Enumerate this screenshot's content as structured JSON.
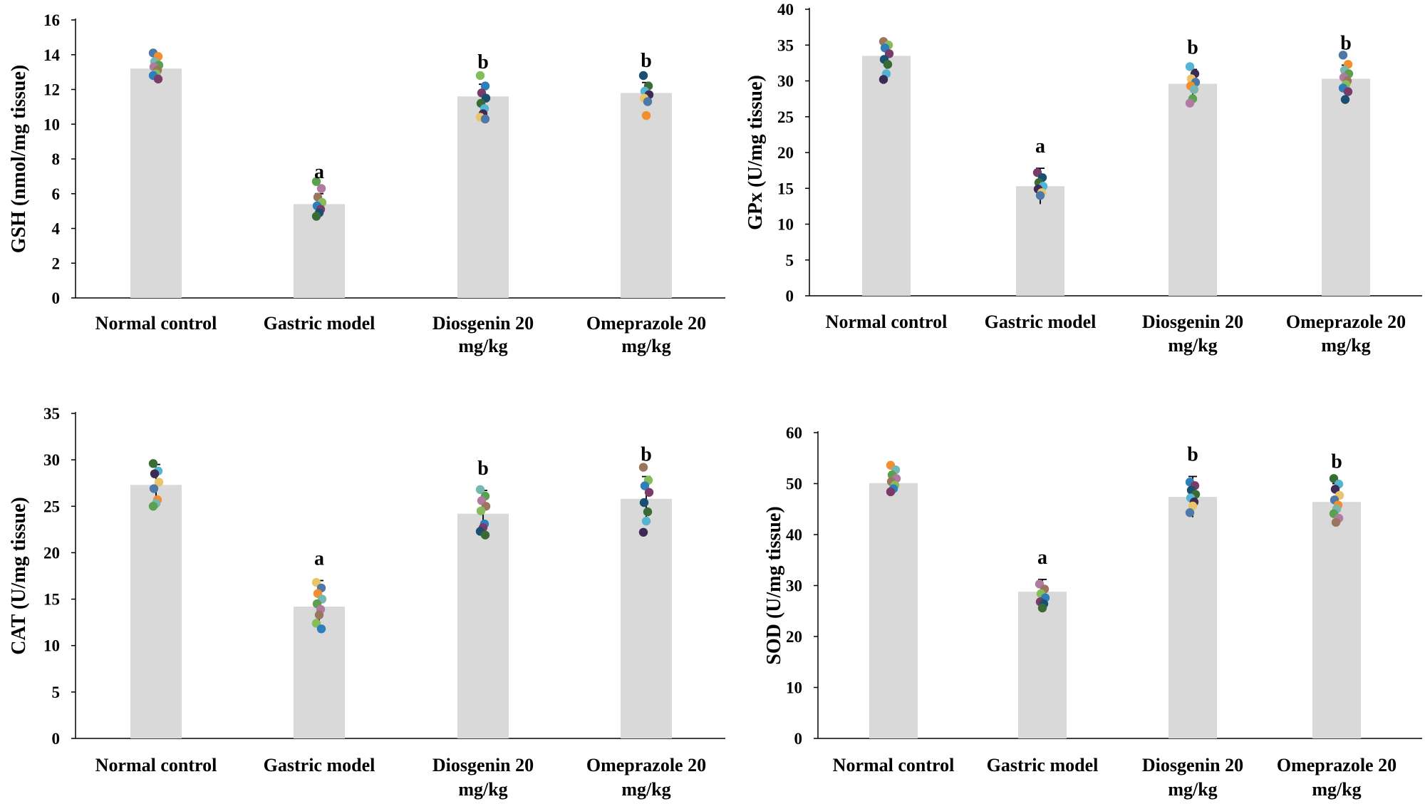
{
  "palette": {
    "bar": "#d9d9d9",
    "axis": "#000000",
    "errorbar": "#000000",
    "dots": [
      "#4e79a7",
      "#f28e2b",
      "#76b7b2",
      "#59a14f",
      "#b07aa1",
      "#9c755f",
      "#86bc5a",
      "#2c7fb8",
      "#7a3b69",
      "#1b4f72",
      "#3a6b35",
      "#56b4d3",
      "#3d2b56",
      "#e9c46a"
    ]
  },
  "chart_data": [
    {
      "type": "bar",
      "ylabel": "GSH  (nmol/mg tissue)",
      "ylim": [
        0,
        16
      ],
      "yticks": [
        "0",
        "2",
        "4",
        "6",
        "8",
        "10",
        "12",
        "14",
        "16"
      ],
      "categories": [
        {
          "line1": "Normal control",
          "line2": ""
        },
        {
          "line1": "Gastric model",
          "line2": ""
        },
        {
          "line1": "Diosgenin 20",
          "line2": "mg/kg"
        },
        {
          "line1": "Omeprazole 20",
          "line2": "mg/kg"
        }
      ],
      "values": [
        13.2,
        5.4,
        11.6,
        11.8
      ],
      "error": [
        0.5,
        0.6,
        0.7,
        0.6
      ],
      "significance": [
        "",
        "a",
        "b",
        "b"
      ],
      "points": [
        [
          14.1,
          13.9,
          13.6,
          13.4,
          13.3,
          13.1,
          12.9,
          12.8,
          12.6
        ],
        [
          6.7,
          6.3,
          5.8,
          5.5,
          5.3,
          5.1,
          4.9,
          4.7
        ],
        [
          12.8,
          12.2,
          11.8,
          11.5,
          11.2,
          10.9,
          10.6,
          10.4,
          10.3
        ],
        [
          12.8,
          12.2,
          11.9,
          11.7,
          11.5,
          11.3,
          10.5
        ]
      ]
    },
    {
      "type": "bar",
      "ylabel": "GPx  (U/mg tissue)",
      "ylim": [
        0,
        40
      ],
      "yticks": [
        "0",
        "5",
        "10",
        "15",
        "20",
        "25",
        "30",
        "35",
        "40"
      ],
      "categories": [
        {
          "line1": "Normal control",
          "line2": ""
        },
        {
          "line1": "Gastric model",
          "line2": ""
        },
        {
          "line1": "Diosgenin 20",
          "line2": "mg/kg"
        },
        {
          "line1": "Omeprazole 20",
          "line2": "mg/kg"
        }
      ],
      "values": [
        33.5,
        15.3,
        29.6,
        30.3
      ],
      "error": [
        1.8,
        2.5,
        2.0,
        1.9
      ],
      "significance": [
        "",
        "a",
        "b",
        "b"
      ],
      "points": [
        [
          35.5,
          35.0,
          34.6,
          33.8,
          33.0,
          32.3,
          31.0,
          30.2
        ],
        [
          17.2,
          16.5,
          15.8,
          15.3,
          14.9,
          14.4,
          14.0
        ],
        [
          32.0,
          31.0,
          30.3,
          29.8,
          29.3,
          28.8,
          27.5,
          26.9
        ],
        [
          33.6,
          32.3,
          31.5,
          31.0,
          30.5,
          30.0,
          29.5,
          29.0,
          28.5,
          27.4
        ]
      ]
    },
    {
      "type": "bar",
      "ylabel": "CAT  (U/mg tissue)",
      "ylim": [
        0,
        35
      ],
      "yticks": [
        "0",
        "5",
        "10",
        "15",
        "20",
        "25",
        "30",
        "35"
      ],
      "categories": [
        {
          "line1": "Normal control",
          "line2": ""
        },
        {
          "line1": "Gastric model",
          "line2": ""
        },
        {
          "line1": "Diosgenin 20",
          "line2": "mg/kg"
        },
        {
          "line1": "Omeprazole 20",
          "line2": "mg/kg"
        }
      ],
      "values": [
        27.3,
        14.2,
        24.2,
        25.8
      ],
      "error": [
        2.2,
        2.8,
        2.5,
        2.4
      ],
      "significance": [
        "",
        "a",
        "b",
        "b"
      ],
      "points": [
        [
          29.6,
          28.8,
          28.5,
          27.6,
          26.9,
          25.7,
          25.3,
          25.0
        ],
        [
          16.8,
          16.2,
          15.6,
          15.0,
          14.5,
          13.9,
          13.3,
          12.4,
          11.8
        ],
        [
          26.8,
          26.1,
          25.6,
          25.0,
          24.5,
          23.1,
          22.7,
          22.3,
          21.9
        ],
        [
          29.2,
          27.8,
          27.2,
          26.5,
          25.4,
          24.4,
          23.4,
          22.2
        ]
      ]
    },
    {
      "type": "bar",
      "ylabel": "SOD  (U/mg tissue)",
      "ylim": [
        0,
        60
      ],
      "yticks": [
        "0",
        "10",
        "20",
        "30",
        "40",
        "50",
        "60"
      ],
      "categories": [
        {
          "line1": "Normal control",
          "line2": ""
        },
        {
          "line1": "Gastric model",
          "line2": ""
        },
        {
          "line1": "Diosgenin 20",
          "line2": "mg/kg"
        },
        {
          "line1": "Omeprazole 20",
          "line2": "mg/kg"
        }
      ],
      "values": [
        50.1,
        28.8,
        47.4,
        46.4
      ],
      "error": [
        2.2,
        2.4,
        4.0,
        3.6
      ],
      "significance": [
        "",
        "a",
        "b",
        "b"
      ],
      "points": [
        [
          53.6,
          52.7,
          51.7,
          51.0,
          50.4,
          49.7,
          49.0,
          48.4
        ],
        [
          30.3,
          29.3,
          28.4,
          27.6,
          26.8,
          26.4,
          25.6
        ],
        [
          50.3,
          49.6,
          48.7,
          47.9,
          47.2,
          46.4,
          45.6,
          44.3
        ],
        [
          51.0,
          49.9,
          48.9,
          47.7,
          46.8,
          45.8,
          45.0,
          44.1,
          43.2,
          42.4
        ]
      ]
    }
  ]
}
